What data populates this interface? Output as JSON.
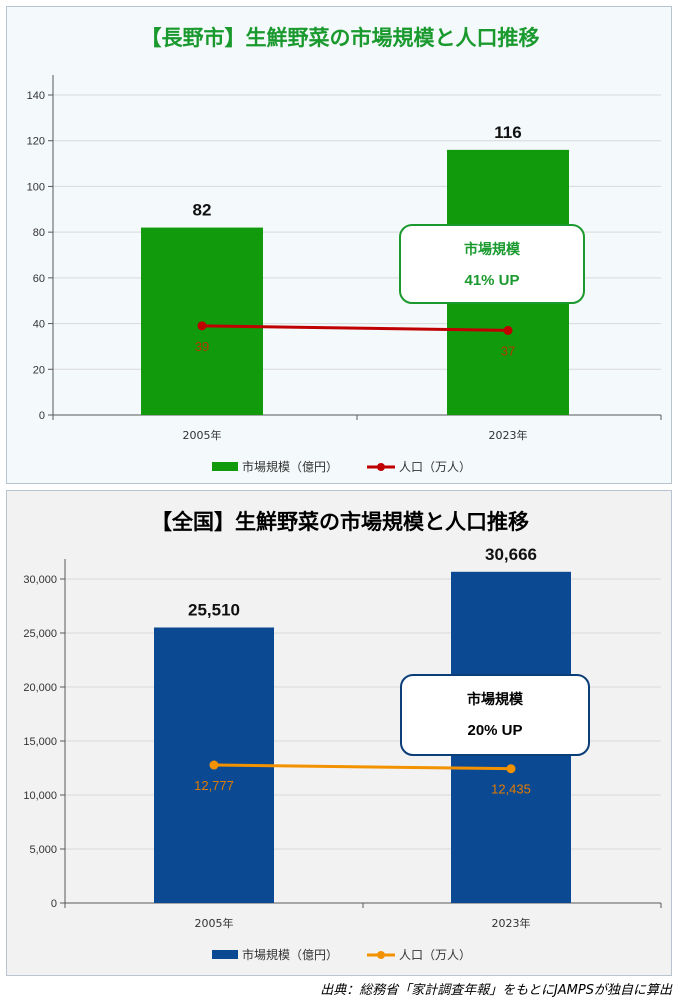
{
  "charts": [
    {
      "title": "【長野市】生鮮野菜の市場規模と人口推移",
      "title_color": "#1a9a2e",
      "bar_color": "#109a0c",
      "line_color": "#c00000",
      "line_label_color": "#b03a00",
      "callout_border": "#1a9a2e",
      "callout_text_color": "#1a9a2e",
      "callout": {
        "line1": "市場規模",
        "line2": "41% UP"
      },
      "legend": {
        "bar": "市場規模（億円）",
        "line": "人口（万人）"
      },
      "chart_data": {
        "type": "bar",
        "categories": [
          "2005年",
          "2023年"
        ],
        "series": [
          {
            "name": "市場規模（億円）",
            "type": "bar",
            "values": [
              82,
              116
            ],
            "labels": [
              "82",
              "116"
            ]
          },
          {
            "name": "人口（万人）",
            "type": "line",
            "values": [
              39,
              37
            ],
            "labels": [
              "39",
              "37"
            ]
          }
        ],
        "ylim": [
          0,
          140
        ],
        "yticks": [
          0,
          20,
          40,
          60,
          80,
          100,
          120,
          140
        ],
        "ytick_labels": [
          "0",
          "20",
          "40",
          "60",
          "80",
          "100",
          "120",
          "140"
        ],
        "grid": true,
        "legend_position": "bottom"
      }
    },
    {
      "title": "【全国】生鮮野菜の市場規模と人口推移",
      "title_color": "#000000",
      "bar_color": "#0b4a93",
      "line_color": "#f39200",
      "line_label_color": "#e07b00",
      "callout_border": "#0b3d78",
      "callout_text_color": "#000000",
      "callout": {
        "line1": "市場規模",
        "line2": "20% UP"
      },
      "legend": {
        "bar": "市場規模（億円）",
        "line": "人口（万人）"
      },
      "chart_data": {
        "type": "bar",
        "categories": [
          "2005年",
          "2023年"
        ],
        "series": [
          {
            "name": "市場規模（億円）",
            "type": "bar",
            "values": [
              25510,
              30666
            ],
            "labels": [
              "25,510",
              "30,666"
            ]
          },
          {
            "name": "人口（万人）",
            "type": "line",
            "values": [
              12777,
              12435
            ],
            "labels": [
              "12,777",
              "12,435"
            ]
          }
        ],
        "ylim": [
          0,
          30000
        ],
        "yticks": [
          0,
          5000,
          10000,
          15000,
          20000,
          25000,
          30000
        ],
        "ytick_labels": [
          "0",
          "5,000",
          "10,000",
          "15,000",
          "20,000",
          "25,000",
          "30,000"
        ],
        "grid": true,
        "legend_position": "bottom"
      }
    }
  ],
  "source_note": "出典：総務省「家計調査年報」をもとにJAMPSが独自に算出"
}
